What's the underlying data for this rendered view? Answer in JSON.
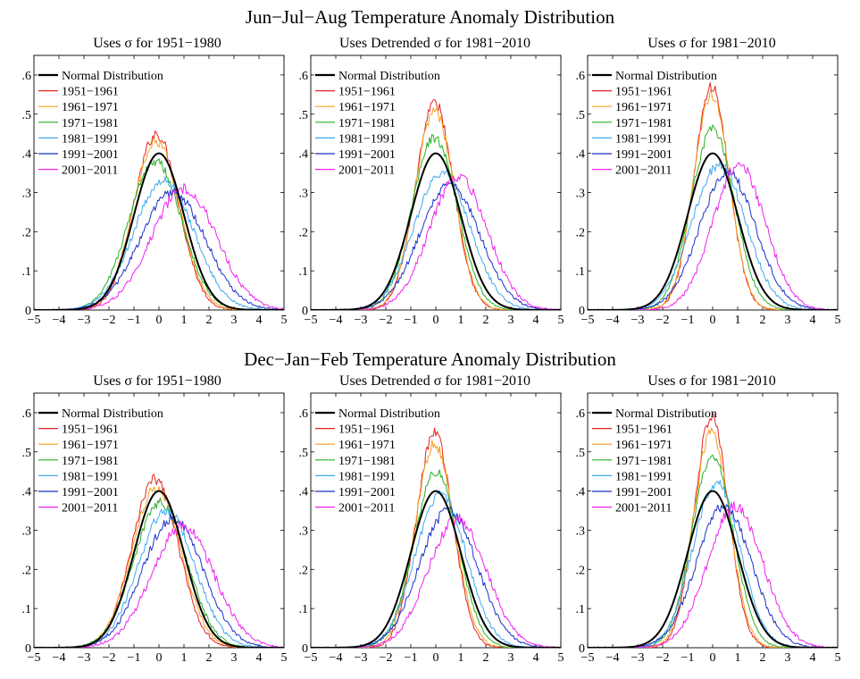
{
  "figure": {
    "row_titles": [
      "Jun−Jul−Aug Temperature Anomaly Distribution",
      "Dec−Jan−Feb Temperature Anomaly Distribution"
    ]
  },
  "series_colors": {
    "Normal Distribution": "#000000",
    "1951−1961": "#e8231f",
    "1961−1971": "#f5a01e",
    "1971−1981": "#27b127",
    "1981−1991": "#3fa9ef",
    "1991−2001": "#1b32c8",
    "2001−2011": "#f020f0"
  },
  "chart_data": [
    {
      "type": "line",
      "season": "Jun-Jul-Aug",
      "title": "Uses σ for 1951−1980",
      "xlim": [
        -5,
        5
      ],
      "ylim": [
        0,
        0.65
      ],
      "xticks": [
        -5,
        -4,
        -3,
        -2,
        -1,
        0,
        1,
        2,
        3,
        4,
        5
      ],
      "xtick_labels": [
        "−5",
        "−4",
        "−3",
        "−2",
        "−1",
        "0",
        "1",
        "2",
        "3",
        "4",
        "5"
      ],
      "yticks": [
        0,
        0.1,
        0.2,
        0.3,
        0.4,
        0.5,
        0.6
      ],
      "ytick_labels": [
        "0",
        ".1",
        ".2",
        ".3",
        ".4",
        ".5",
        ".6"
      ],
      "legend": "top-left",
      "series": [
        {
          "name": "Normal Distribution",
          "mean": 0,
          "sd": 1,
          "peak": 0.4,
          "noise": 0
        },
        {
          "name": "1951−1961",
          "mean": -0.1,
          "sd": 0.89,
          "peak": 0.45,
          "noise": 0.015
        },
        {
          "name": "1961−1971",
          "mean": -0.1,
          "sd": 0.93,
          "peak": 0.43,
          "noise": 0.012
        },
        {
          "name": "1971−1981",
          "mean": -0.15,
          "sd": 1.05,
          "peak": 0.38,
          "noise": 0.012
        },
        {
          "name": "1981−1991",
          "mean": 0.2,
          "sd": 1.2,
          "peak": 0.33,
          "noise": 0.012
        },
        {
          "name": "1991−2001",
          "mean": 0.55,
          "sd": 1.3,
          "peak": 0.3,
          "noise": 0.012
        },
        {
          "name": "2001−2011",
          "mean": 1.0,
          "sd": 1.3,
          "peak": 0.31,
          "noise": 0.014
        }
      ]
    },
    {
      "type": "line",
      "season": "Jun-Jul-Aug",
      "title": "Uses Detrended σ for 1981−2010",
      "xlim": [
        -5,
        5
      ],
      "ylim": [
        0,
        0.65
      ],
      "xticks": [
        -5,
        -4,
        -3,
        -2,
        -1,
        0,
        1,
        2,
        3,
        4,
        5
      ],
      "xtick_labels": [
        "−5",
        "−4",
        "−3",
        "−2",
        "−1",
        "0",
        "1",
        "2",
        "3",
        "4",
        "5"
      ],
      "yticks": [
        0,
        0.1,
        0.2,
        0.3,
        0.4,
        0.5,
        0.6
      ],
      "ytick_labels": [
        "0",
        ".1",
        ".2",
        ".3",
        ".4",
        ".5",
        ".6"
      ],
      "legend": "top-left",
      "series": [
        {
          "name": "Normal Distribution",
          "mean": 0,
          "sd": 1,
          "peak": 0.4,
          "noise": 0
        },
        {
          "name": "1951−1961",
          "mean": -0.05,
          "sd": 0.76,
          "peak": 0.53,
          "noise": 0.015
        },
        {
          "name": "1961−1971",
          "mean": -0.05,
          "sd": 0.78,
          "peak": 0.51,
          "noise": 0.014
        },
        {
          "name": "1971−1981",
          "mean": -0.05,
          "sd": 0.9,
          "peak": 0.44,
          "noise": 0.013
        },
        {
          "name": "1981−1991",
          "mean": 0.25,
          "sd": 1.12,
          "peak": 0.35,
          "noise": 0.012
        },
        {
          "name": "1991−2001",
          "mean": 0.55,
          "sd": 1.2,
          "peak": 0.32,
          "noise": 0.012
        },
        {
          "name": "2001−2011",
          "mean": 0.9,
          "sd": 1.15,
          "peak": 0.34,
          "noise": 0.014
        }
      ]
    },
    {
      "type": "line",
      "season": "Jun-Jul-Aug",
      "title": "Uses σ for 1981−2010",
      "xlim": [
        -5,
        5
      ],
      "ylim": [
        0,
        0.65
      ],
      "xticks": [
        -5,
        -4,
        -3,
        -2,
        -1,
        0,
        1,
        2,
        3,
        4,
        5
      ],
      "xtick_labels": [
        "−5",
        "−4",
        "−3",
        "−2",
        "−1",
        "0",
        "1",
        "2",
        "3",
        "4",
        "5"
      ],
      "yticks": [
        0,
        0.1,
        0.2,
        0.3,
        0.4,
        0.5,
        0.6
      ],
      "ytick_labels": [
        "0",
        ".1",
        ".2",
        ".3",
        ".4",
        ".5",
        ".6"
      ],
      "legend": "top-left",
      "series": [
        {
          "name": "Normal Distribution",
          "mean": 0,
          "sd": 1,
          "peak": 0.4,
          "noise": 0
        },
        {
          "name": "1951−1961",
          "mean": -0.05,
          "sd": 0.7,
          "peak": 0.57,
          "noise": 0.015
        },
        {
          "name": "1961−1971",
          "mean": -0.05,
          "sd": 0.72,
          "peak": 0.55,
          "noise": 0.014
        },
        {
          "name": "1971−1981",
          "mean": 0.0,
          "sd": 0.86,
          "peak": 0.46,
          "noise": 0.013
        },
        {
          "name": "1981−1991",
          "mean": 0.25,
          "sd": 1.08,
          "peak": 0.37,
          "noise": 0.012
        },
        {
          "name": "1991−2001",
          "mean": 0.6,
          "sd": 1.12,
          "peak": 0.35,
          "noise": 0.013
        },
        {
          "name": "2001−2011",
          "mean": 1.05,
          "sd": 1.05,
          "peak": 0.37,
          "noise": 0.015
        }
      ]
    },
    {
      "type": "line",
      "season": "Dec-Jan-Feb",
      "title": "Uses σ for 1951−1980",
      "xlim": [
        -5,
        5
      ],
      "ylim": [
        0,
        0.65
      ],
      "xticks": [
        -5,
        -4,
        -3,
        -2,
        -1,
        0,
        1,
        2,
        3,
        4,
        5
      ],
      "xtick_labels": [
        "−5",
        "−4",
        "−3",
        "−2",
        "−1",
        "0",
        "1",
        "2",
        "3",
        "4",
        "5"
      ],
      "yticks": [
        0,
        0.1,
        0.2,
        0.3,
        0.4,
        0.5,
        0.6
      ],
      "ytick_labels": [
        "0",
        ".1",
        ".2",
        ".3",
        ".4",
        ".5",
        ".6"
      ],
      "legend": "top-left",
      "series": [
        {
          "name": "Normal Distribution",
          "mean": 0,
          "sd": 1,
          "peak": 0.4,
          "noise": 0
        },
        {
          "name": "1951−1961",
          "mean": -0.15,
          "sd": 0.93,
          "peak": 0.43,
          "noise": 0.015
        },
        {
          "name": "1961−1971",
          "mean": -0.1,
          "sd": 0.98,
          "peak": 0.41,
          "noise": 0.013
        },
        {
          "name": "1971−1981",
          "mean": 0.05,
          "sd": 1.06,
          "peak": 0.37,
          "noise": 0.013
        },
        {
          "name": "1981−1991",
          "mean": 0.3,
          "sd": 1.12,
          "peak": 0.35,
          "noise": 0.013
        },
        {
          "name": "1991−2001",
          "mean": 0.55,
          "sd": 1.2,
          "peak": 0.33,
          "noise": 0.013
        },
        {
          "name": "2001−2011",
          "mean": 0.95,
          "sd": 1.25,
          "peak": 0.31,
          "noise": 0.015
        }
      ]
    },
    {
      "type": "line",
      "season": "Dec-Jan-Feb",
      "title": "Uses Detrended σ for 1981−2010",
      "xlim": [
        -5,
        5
      ],
      "ylim": [
        0,
        0.65
      ],
      "xticks": [
        -5,
        -4,
        -3,
        -2,
        -1,
        0,
        1,
        2,
        3,
        4,
        5
      ],
      "xtick_labels": [
        "−5",
        "−4",
        "−3",
        "−2",
        "−1",
        "0",
        "1",
        "2",
        "3",
        "4",
        "5"
      ],
      "yticks": [
        0,
        0.1,
        0.2,
        0.3,
        0.4,
        0.5,
        0.6
      ],
      "ytick_labels": [
        "0",
        ".1",
        ".2",
        ".3",
        ".4",
        ".5",
        ".6"
      ],
      "legend": "top-left",
      "series": [
        {
          "name": "Normal Distribution",
          "mean": 0,
          "sd": 1,
          "peak": 0.4,
          "noise": 0
        },
        {
          "name": "1951−1961",
          "mean": -0.05,
          "sd": 0.73,
          "peak": 0.55,
          "noise": 0.016
        },
        {
          "name": "1961−1971",
          "mean": -0.05,
          "sd": 0.78,
          "peak": 0.52,
          "noise": 0.014
        },
        {
          "name": "1971−1981",
          "mean": 0.0,
          "sd": 0.88,
          "peak": 0.45,
          "noise": 0.013
        },
        {
          "name": "1981−1991",
          "mean": 0.2,
          "sd": 1.02,
          "peak": 0.39,
          "noise": 0.013
        },
        {
          "name": "1991−2001",
          "mean": 0.5,
          "sd": 1.15,
          "peak": 0.35,
          "noise": 0.013
        },
        {
          "name": "2001−2011",
          "mean": 0.85,
          "sd": 1.15,
          "peak": 0.33,
          "noise": 0.015
        }
      ]
    },
    {
      "type": "line",
      "season": "Dec-Jan-Feb",
      "title": "Uses σ for 1981−2010",
      "xlim": [
        -5,
        5
      ],
      "ylim": [
        0,
        0.65
      ],
      "xticks": [
        -5,
        -4,
        -3,
        -2,
        -1,
        0,
        1,
        2,
        3,
        4,
        5
      ],
      "xtick_labels": [
        "−5",
        "−4",
        "−3",
        "−2",
        "−1",
        "0",
        "1",
        "2",
        "3",
        "4",
        "5"
      ],
      "yticks": [
        0,
        0.1,
        0.2,
        0.3,
        0.4,
        0.5,
        0.6
      ],
      "ytick_labels": [
        "0",
        ".1",
        ".2",
        ".3",
        ".4",
        ".5",
        ".6"
      ],
      "legend": "top-left",
      "series": [
        {
          "name": "Normal Distribution",
          "mean": 0,
          "sd": 1,
          "peak": 0.4,
          "noise": 0
        },
        {
          "name": "1951−1961",
          "mean": -0.05,
          "sd": 0.68,
          "peak": 0.59,
          "noise": 0.016
        },
        {
          "name": "1961−1971",
          "mean": -0.05,
          "sd": 0.72,
          "peak": 0.55,
          "noise": 0.015
        },
        {
          "name": "1971−1981",
          "mean": 0.0,
          "sd": 0.82,
          "peak": 0.49,
          "noise": 0.014
        },
        {
          "name": "1981−1991",
          "mean": 0.15,
          "sd": 0.95,
          "peak": 0.42,
          "noise": 0.014
        },
        {
          "name": "1991−2001",
          "mean": 0.45,
          "sd": 1.1,
          "peak": 0.36,
          "noise": 0.014
        },
        {
          "name": "2001−2011",
          "mean": 0.9,
          "sd": 1.1,
          "peak": 0.36,
          "noise": 0.016
        }
      ]
    }
  ]
}
